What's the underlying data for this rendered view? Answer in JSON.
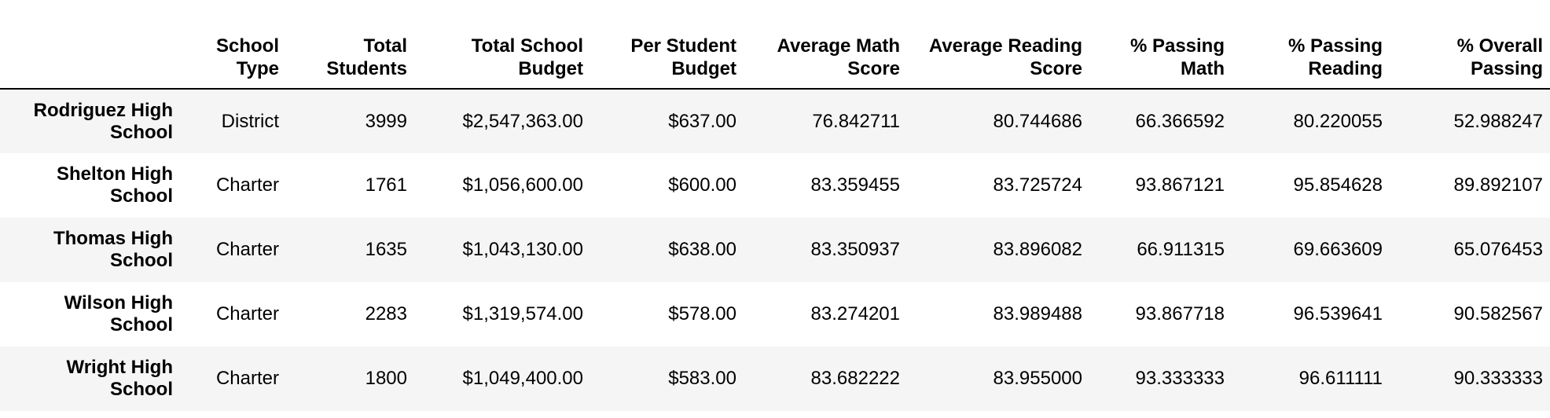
{
  "table": {
    "columns": [
      {
        "line1": "School",
        "line2": "Type"
      },
      {
        "line1": "Total",
        "line2": "Students"
      },
      {
        "line1": "Total School",
        "line2": "Budget"
      },
      {
        "line1": "Per Student",
        "line2": "Budget"
      },
      {
        "line1": "Average Math",
        "line2": "Score"
      },
      {
        "line1": "Average Reading",
        "line2": "Score"
      },
      {
        "line1": "% Passing",
        "line2": "Math"
      },
      {
        "line1": "% Passing",
        "line2": "Reading"
      },
      {
        "line1": "% Overall",
        "line2": "Passing"
      }
    ],
    "rows": [
      {
        "name_line1": "Rodriguez High",
        "name_line2": "School",
        "school_type": "District",
        "total_students": "3999",
        "total_school_budget": "$2,547,363.00",
        "per_student_budget": "$637.00",
        "avg_math_score": "76.842711",
        "avg_reading_score": "80.744686",
        "pct_passing_math": "66.366592",
        "pct_passing_reading": "80.220055",
        "pct_overall_passing": "52.988247"
      },
      {
        "name_line1": "Shelton High",
        "name_line2": "School",
        "school_type": "Charter",
        "total_students": "1761",
        "total_school_budget": "$1,056,600.00",
        "per_student_budget": "$600.00",
        "avg_math_score": "83.359455",
        "avg_reading_score": "83.725724",
        "pct_passing_math": "93.867121",
        "pct_passing_reading": "95.854628",
        "pct_overall_passing": "89.892107"
      },
      {
        "name_line1": "Thomas High",
        "name_line2": "School",
        "school_type": "Charter",
        "total_students": "1635",
        "total_school_budget": "$1,043,130.00",
        "per_student_budget": "$638.00",
        "avg_math_score": "83.350937",
        "avg_reading_score": "83.896082",
        "pct_passing_math": "66.911315",
        "pct_passing_reading": "69.663609",
        "pct_overall_passing": "65.076453"
      },
      {
        "name_line1": "Wilson High",
        "name_line2": "School",
        "school_type": "Charter",
        "total_students": "2283",
        "total_school_budget": "$1,319,574.00",
        "per_student_budget": "$578.00",
        "avg_math_score": "83.274201",
        "avg_reading_score": "83.989488",
        "pct_passing_math": "93.867718",
        "pct_passing_reading": "96.539641",
        "pct_overall_passing": "90.582567"
      },
      {
        "name_line1": "Wright High",
        "name_line2": "School",
        "school_type": "Charter",
        "total_students": "1800",
        "total_school_budget": "$1,049,400.00",
        "per_student_budget": "$583.00",
        "avg_math_score": "83.682222",
        "avg_reading_score": "83.955000",
        "pct_passing_math": "93.333333",
        "pct_passing_reading": "96.611111",
        "pct_overall_passing": "90.333333"
      }
    ]
  },
  "colors": {
    "row_stripe": "#f5f5f5",
    "header_rule": "#000000"
  }
}
